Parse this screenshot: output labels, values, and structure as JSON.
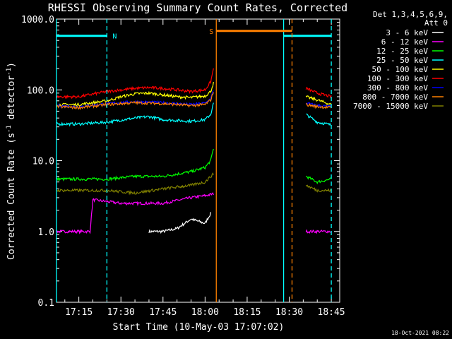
{
  "chart_data": {
    "type": "line",
    "title": "RHESSI Observing Summary Count Rates, Corrected",
    "xlabel": "Start Time (10-May-03 17:07:02)",
    "ylabel": "Corrected Count Rate (s-1 detector-1)",
    "ylabel_parts": {
      "main": "Corrected Count Rate (s",
      "exp1": "-1",
      "mid": " detector",
      "exp2": "-1",
      "end": ")"
    },
    "y_scale": "log",
    "ylim": [
      0.1,
      1000
    ],
    "xlim": [
      "17:07:02",
      "18:48:00"
    ],
    "x_ticks": [
      "17:15",
      "17:30",
      "17:45",
      "18:00",
      "18:15",
      "18:30",
      "18:45"
    ],
    "y_ticks": [
      "0.1",
      "1.0",
      "10.0",
      "100.0",
      "1000.0"
    ],
    "legend_title": [
      "Det 1,3,4,5,6,9,",
      "Att 0"
    ],
    "legend_position": "right",
    "timestamp": "18-Oct-2021 08:22",
    "data_gap": [
      "18:04",
      "18:36"
    ],
    "series": [
      {
        "name": "3 - 6 keV",
        "color": "#ffffff",
        "x": [
          "17:20",
          "17:30",
          "17:40",
          "17:45",
          "17:50",
          "17:55",
          "18:00",
          "18:02"
        ],
        "y": [
          null,
          null,
          1.0,
          1.0,
          1.1,
          1.5,
          1.3,
          1.8
        ]
      },
      {
        "name": "6 - 12 keV",
        "color": "#ff00ff",
        "x": [
          "17:07",
          "17:15",
          "17:19",
          "17:20",
          "17:30",
          "17:40",
          "17:45",
          "17:55",
          "18:00",
          "18:03",
          "18:36",
          "18:45"
        ],
        "y": [
          1.0,
          1.0,
          1.0,
          2.8,
          2.5,
          2.5,
          2.5,
          3.0,
          3.2,
          3.4,
          1.0,
          1.0
        ]
      },
      {
        "name": "12 - 25 keV",
        "color": "#00ff00",
        "x": [
          "17:07",
          "17:15",
          "17:25",
          "17:35",
          "17:45",
          "17:55",
          "18:00",
          "18:02",
          "18:03",
          "18:36",
          "18:40",
          "18:45"
        ],
        "y": [
          5.5,
          5.5,
          5.5,
          6.0,
          6.0,
          7.0,
          8.0,
          10.0,
          15.0,
          6.0,
          5.0,
          5.5
        ]
      },
      {
        "name": "25 - 50 keV",
        "color": "#00ffff",
        "x": [
          "17:07",
          "17:15",
          "17:25",
          "17:35",
          "17:40",
          "17:45",
          "17:55",
          "18:00",
          "18:02",
          "18:03",
          "18:36",
          "18:40",
          "18:45"
        ],
        "y": [
          33,
          33,
          35,
          40,
          42,
          38,
          36,
          38,
          45,
          65,
          45,
          35,
          32
        ]
      },
      {
        "name": "50 - 100 keV",
        "color": "#ffff00",
        "x": [
          "17:07",
          "17:15",
          "17:25",
          "17:30",
          "17:35",
          "17:40",
          "17:45",
          "17:50",
          "17:55",
          "18:00",
          "18:02",
          "18:03",
          "18:36",
          "18:40",
          "18:45"
        ],
        "y": [
          62,
          62,
          70,
          80,
          88,
          90,
          85,
          80,
          78,
          82,
          95,
          125,
          80,
          72,
          62
        ]
      },
      {
        "name": "100 - 300 keV",
        "color": "#ff0000",
        "x": [
          "17:07",
          "17:15",
          "17:25",
          "17:35",
          "17:40",
          "17:45",
          "17:55",
          "18:00",
          "18:02",
          "18:03",
          "18:36",
          "18:40",
          "18:45"
        ],
        "y": [
          80,
          80,
          95,
          105,
          108,
          105,
          95,
          100,
          130,
          200,
          105,
          90,
          80
        ]
      },
      {
        "name": "300 - 800 keV",
        "color": "#0000ff",
        "x": [
          "17:07",
          "17:15",
          "17:25",
          "17:35",
          "17:45",
          "17:55",
          "18:00",
          "18:02",
          "18:03",
          "18:36",
          "18:40",
          "18:45"
        ],
        "y": [
          60,
          58,
          64,
          68,
          66,
          62,
          65,
          75,
          100,
          65,
          60,
          58
        ]
      },
      {
        "name": "800 - 7000 keV",
        "color": "#ff8000",
        "x": [
          "17:07",
          "17:15",
          "17:25",
          "17:35",
          "17:45",
          "17:55",
          "18:00",
          "18:02",
          "18:03",
          "18:36",
          "18:40",
          "18:45"
        ],
        "y": [
          58,
          56,
          62,
          66,
          64,
          60,
          62,
          72,
          95,
          62,
          58,
          56
        ]
      },
      {
        "name": "7000 - 15000 keV",
        "color": "#808000",
        "x": [
          "17:07",
          "17:15",
          "17:25",
          "17:35",
          "17:45",
          "17:55",
          "18:00",
          "18:02",
          "18:03",
          "18:36",
          "18:40",
          "18:45"
        ],
        "y": [
          3.8,
          3.8,
          3.8,
          3.5,
          4.0,
          4.5,
          5.0,
          6.0,
          6.5,
          4.5,
          3.8,
          3.8
        ]
      }
    ],
    "annotations": [
      {
        "label": "N",
        "color": "#00ffff",
        "bar": [
          "17:07",
          "17:25"
        ],
        "level": 580,
        "start": "17:07",
        "end": "17:25"
      },
      {
        "label": "",
        "color": "#00ffff",
        "bar": [
          "18:28",
          "18:45"
        ],
        "level": 580,
        "start": "18:28",
        "end": "18:45"
      },
      {
        "label": "S",
        "color": "#ff8000",
        "bar": [
          "18:04",
          "18:31"
        ],
        "level": 680,
        "start": "18:04",
        "end": "18:31"
      }
    ]
  }
}
